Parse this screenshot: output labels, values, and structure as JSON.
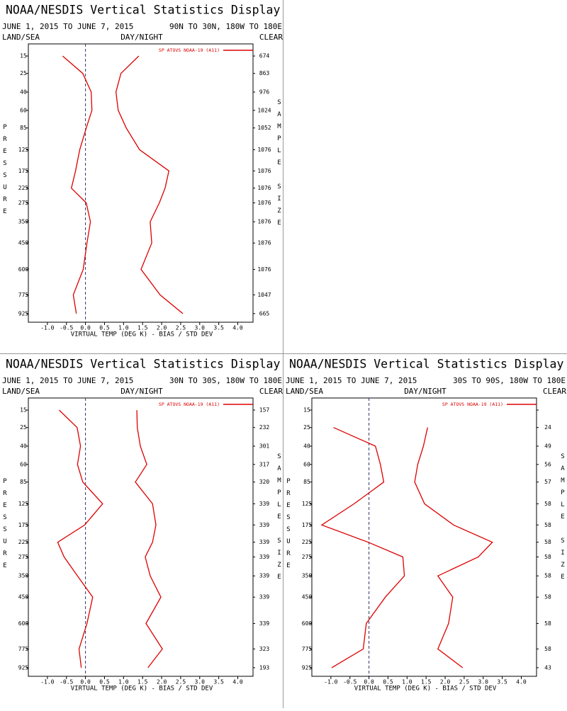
{
  "chart_data": [
    {
      "type": "line",
      "title": "NOAA/NESDIS Vertical Statistics Display",
      "subtitle": "JUNE 1, 2015 TO JUNE 7, 2015",
      "region": "90N TO 30N, 180W TO 180E",
      "left_label": "LAND/SEA",
      "center_label": "DAY/NIGHT",
      "right_label": "CLEAR",
      "x_label": "VIRTUAL TEMP (DEG K) - BIAS / STD DEV",
      "y_label": "PRESSURE",
      "y2_label": "SAMPLE SIZE",
      "categories": [
        15,
        25,
        40,
        60,
        85,
        125,
        175,
        225,
        275,
        350,
        450,
        600,
        775,
        925
      ],
      "ylim": [
        10,
        1000
      ],
      "xlim": [
        -1.5,
        4.4
      ],
      "xticks": [
        {
          "value": -1,
          "label": "-1.0"
        },
        -0.5,
        {
          "value": 0,
          "label": "0.0"
        },
        0.5,
        {
          "value": 1,
          "label": "1.0"
        },
        1.5,
        {
          "value": 2,
          "label": "2.0"
        },
        2.5,
        {
          "value": 3,
          "label": "3.0"
        },
        3.5,
        {
          "value": 4,
          "label": "4.0"
        }
      ],
      "series": [
        {
          "name": "SP ATOVS NOAA-19 (A11)",
          "color": "#dd0000",
          "values": [
            -0.6,
            -0.07,
            0.15,
            0.17,
            0.02,
            -0.15,
            -0.26,
            -0.37,
            0.02,
            0.13,
            0.04,
            -0.06,
            -0.32,
            -0.24
          ]
        },
        {
          "color": "#dd0000",
          "values": [
            1.4,
            0.93,
            0.8,
            0.86,
            1.07,
            1.42,
            2.19,
            2.09,
            1.94,
            1.7,
            1.74,
            1.46,
            1.96,
            2.56
          ]
        }
      ],
      "sample_size": [
        674,
        863,
        976,
        1024,
        1052,
        1076,
        1076,
        1076,
        1076,
        1076,
        1076,
        1076,
        1047,
        665
      ]
    },
    {
      "type": "line",
      "title": "NOAA/NESDIS Vertical Statistics Display",
      "subtitle": "JUNE 1, 2015 TO JUNE 7, 2015",
      "region": "30N TO 30S, 180W TO 180E",
      "left_label": "LAND/SEA",
      "center_label": "DAY/NIGHT",
      "right_label": "CLEAR",
      "x_label": "VIRTUAL TEMP (DEG K) - BIAS / STD DEV",
      "y_label": "PRESSURE",
      "y2_label": "SAMPLE SIZE",
      "categories": [
        15,
        25,
        40,
        60,
        85,
        125,
        175,
        225,
        275,
        350,
        450,
        600,
        775,
        925
      ],
      "ylim": [
        10,
        1000
      ],
      "xlim": [
        -1.5,
        4.4
      ],
      "xticks": [
        {
          "value": -1,
          "label": "-1.0"
        },
        -0.5,
        {
          "value": 0,
          "label": "0.0"
        },
        0.5,
        {
          "value": 1,
          "label": "1.0"
        },
        1.5,
        {
          "value": 2,
          "label": "2.0"
        },
        2.5,
        {
          "value": 3,
          "label": "3.0"
        },
        3.5,
        {
          "value": 4,
          "label": "4.0"
        }
      ],
      "series": [
        {
          "name": "SP ATOVS NOAA-19 (A11)",
          "color": "#dd0000",
          "values": [
            -0.69,
            -0.22,
            -0.13,
            -0.21,
            -0.07,
            0.45,
            -0.02,
            -0.73,
            -0.56,
            -0.21,
            0.19,
            0.04,
            -0.17,
            -0.11
          ]
        },
        {
          "color": "#dd0000",
          "values": [
            1.35,
            1.36,
            1.44,
            1.61,
            1.31,
            1.76,
            1.85,
            1.76,
            1.57,
            1.7,
            1.98,
            1.59,
            2.02,
            1.64
          ]
        }
      ],
      "sample_size": [
        157,
        232,
        301,
        317,
        320,
        339,
        339,
        339,
        339,
        339,
        339,
        339,
        323,
        193
      ]
    },
    {
      "type": "line",
      "title": "NOAA/NESDIS Vertical Statistics Display",
      "subtitle": "JUNE 1, 2015 TO JUNE 7, 2015",
      "region": "30S TO 90S, 180W TO 180E",
      "left_label": "LAND/SEA",
      "center_label": "DAY/NIGHT",
      "right_label": "CLEAR",
      "x_label": "VIRTUAL TEMP (DEG K) - BIAS / STD DEV",
      "y_label": "PRESSURE",
      "y2_label": "SAMPLE SIZE",
      "categories": [
        15,
        25,
        40,
        60,
        85,
        125,
        175,
        225,
        275,
        350,
        450,
        600,
        775,
        925
      ],
      "ylim": [
        10,
        1000
      ],
      "xlim": [
        -1.5,
        4.4
      ],
      "xticks": [
        {
          "value": -1,
          "label": "-1.0"
        },
        -0.5,
        {
          "value": 0,
          "label": "0.0"
        },
        0.5,
        {
          "value": 1,
          "label": "1.0"
        },
        1.5,
        {
          "value": 2,
          "label": "2.0"
        },
        2.5,
        {
          "value": 3,
          "label": "3.0"
        },
        3.5,
        {
          "value": 4,
          "label": "4.0"
        }
      ],
      "series": [
        {
          "name": "SP ATOVS NOAA-19 (A11)",
          "color": "#dd0000",
          "values": [
            null,
            -0.93,
            0.17,
            0.3,
            0.39,
            -0.39,
            -1.24,
            -0.02,
            0.89,
            0.93,
            0.43,
            -0.07,
            -0.15,
            -0.98
          ]
        },
        {
          "color": "#dd0000",
          "values": [
            null,
            1.54,
            1.43,
            1.28,
            1.2,
            1.46,
            2.22,
            3.24,
            2.87,
            1.81,
            2.2,
            2.09,
            1.81,
            2.46
          ]
        }
      ],
      "sample_size": [
        null,
        24,
        49,
        56,
        57,
        58,
        58,
        58,
        58,
        58,
        58,
        58,
        58,
        43
      ]
    }
  ]
}
